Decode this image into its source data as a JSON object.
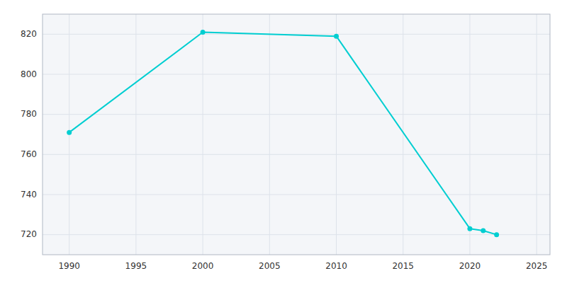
{
  "chart_data": {
    "type": "line",
    "x": [
      1990,
      2000,
      2010,
      2020,
      2021,
      2022
    ],
    "values": [
      771,
      821,
      819,
      723,
      722,
      720
    ],
    "color": "#00CED1",
    "marker": "circle",
    "xlim": [
      1988,
      2026
    ],
    "xticks": [
      1990,
      1995,
      2000,
      2005,
      2010,
      2015,
      2020,
      2025
    ],
    "ylim": [
      710,
      830
    ],
    "yticks": [
      720,
      740,
      760,
      780,
      800,
      820
    ],
    "grid": true
  }
}
